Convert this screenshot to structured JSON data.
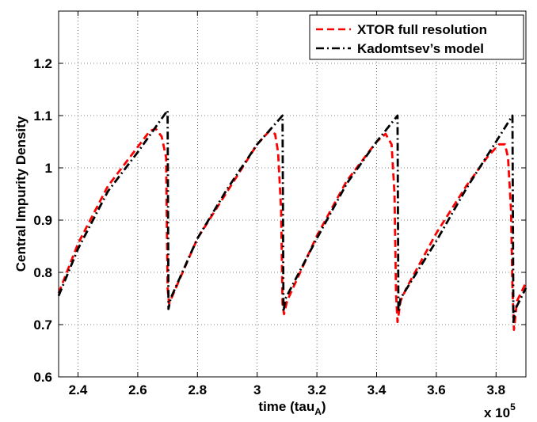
{
  "chart_data": {
    "type": "line",
    "xlabel": "time (tau",
    "xlabel_sub": "A",
    "ylabel": "Central Impurity Density",
    "x_multiplier": "x 10",
    "x_multiplier_exp": "5",
    "xlim": [
      2.335,
      3.9
    ],
    "ylim": [
      0.6,
      1.3
    ],
    "xticks": [
      2.4,
      2.6,
      2.8,
      3,
      3.2,
      3.4,
      3.6,
      3.8
    ],
    "xtick_labels": [
      "2.4",
      "2.6",
      "2.8",
      "3",
      "3.2",
      "3.4",
      "3.6",
      "3.8"
    ],
    "yticks": [
      0.6,
      0.7,
      0.8,
      0.9,
      1.0,
      1.1,
      1.2
    ],
    "ytick_labels": [
      "0.6",
      "0.7",
      "0.8",
      "0.9",
      "1",
      "1.1",
      "1.2"
    ],
    "grid": true,
    "legend_position": "top-right",
    "series": [
      {
        "name": "XTOR full resolution",
        "color": "#ff0000",
        "style": "dashed",
        "x": [
          2.335,
          2.4,
          2.5,
          2.6,
          2.64,
          2.66,
          2.68,
          2.695,
          2.7,
          2.705,
          2.72,
          2.8,
          2.9,
          3.0,
          3.04,
          3.06,
          3.07,
          3.08,
          3.085,
          3.09,
          3.1,
          3.2,
          3.3,
          3.36,
          3.4,
          3.43,
          3.45,
          3.46,
          3.465,
          3.47,
          3.48,
          3.5,
          3.6,
          3.7,
          3.77,
          3.81,
          3.83,
          3.84,
          3.85,
          3.855,
          3.86,
          3.87,
          3.9
        ],
        "y": [
          0.76,
          0.855,
          0.965,
          1.04,
          1.07,
          1.075,
          1.06,
          1.02,
          0.77,
          0.74,
          0.76,
          0.865,
          0.955,
          1.045,
          1.07,
          1.065,
          1.03,
          0.92,
          0.74,
          0.72,
          0.745,
          0.87,
          0.975,
          1.02,
          1.05,
          1.065,
          1.045,
          0.95,
          0.76,
          0.705,
          0.745,
          0.77,
          0.875,
          0.965,
          1.02,
          1.045,
          1.045,
          1.02,
          0.92,
          0.77,
          0.69,
          0.745,
          0.78
        ]
      },
      {
        "name": "Kadomtsev’s model",
        "color": "#000000",
        "style": "dashdot",
        "x": [
          2.335,
          2.4,
          2.5,
          2.6,
          2.7,
          2.703,
          2.71,
          2.8,
          2.9,
          3.0,
          3.085,
          3.088,
          3.095,
          3.2,
          3.3,
          3.4,
          3.47,
          3.473,
          3.48,
          3.6,
          3.7,
          3.8,
          3.855,
          3.858,
          3.865,
          3.9
        ],
        "y": [
          0.755,
          0.845,
          0.955,
          1.03,
          1.11,
          0.73,
          0.75,
          0.865,
          0.96,
          1.045,
          1.1,
          0.725,
          0.75,
          0.865,
          0.97,
          1.05,
          1.1,
          0.725,
          0.75,
          0.86,
          0.96,
          1.05,
          1.1,
          0.705,
          0.73,
          0.77
        ]
      }
    ]
  }
}
